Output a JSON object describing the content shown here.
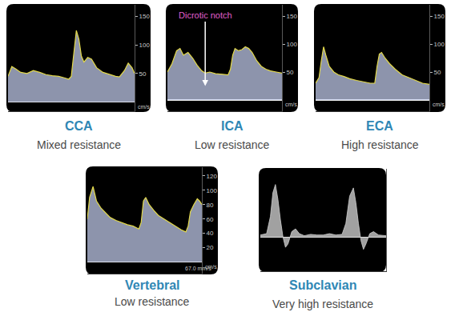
{
  "chart_data": [
    {
      "type": "area",
      "title": "CCA",
      "subtitle": "Mixed resistance",
      "color": "#e3d94a",
      "x": [
        0,
        3,
        6,
        10,
        15,
        20,
        25,
        30,
        35,
        40,
        45,
        48,
        50,
        52,
        54,
        56,
        58,
        60,
        63,
        66,
        70,
        75,
        80,
        85,
        88,
        92,
        95,
        98,
        100
      ],
      "values": [
        45,
        62,
        58,
        52,
        50,
        55,
        52,
        48,
        46,
        45,
        42,
        40,
        45,
        90,
        125,
        110,
        80,
        70,
        78,
        75,
        60,
        52,
        48,
        45,
        44,
        55,
        68,
        60,
        50
      ],
      "xlim": [
        0,
        100
      ],
      "ylim": [
        -16,
        170
      ],
      "yticks": [
        50,
        100,
        150
      ],
      "y_label": "cm/s",
      "tick_labels": "y",
      "grid": false
    },
    {
      "type": "area",
      "title": "ICA",
      "subtitle": "Low resistance",
      "color": "#e3d94a",
      "x": [
        0,
        4,
        8,
        11,
        14,
        18,
        22,
        26,
        30,
        33,
        37,
        42,
        48,
        53,
        55,
        57,
        59,
        62,
        65,
        68,
        71,
        74,
        78,
        82,
        86,
        90,
        95,
        100
      ],
      "values": [
        50,
        65,
        88,
        92,
        80,
        85,
        75,
        62,
        52,
        48,
        50,
        47,
        46,
        45,
        55,
        80,
        92,
        88,
        90,
        95,
        92,
        85,
        70,
        60,
        55,
        52,
        50,
        48
      ],
      "xlim": [
        0,
        100
      ],
      "ylim": [
        -20,
        170
      ],
      "yticks": [
        50,
        100,
        150
      ],
      "y_label": "cm/s",
      "annotations": [
        {
          "text": "Dicrotic notch",
          "x": 33,
          "y": 25
        }
      ],
      "tick_labels": "y",
      "grid": false
    },
    {
      "type": "area",
      "title": "ECA",
      "subtitle": "High resistance",
      "color": "#e3d94a",
      "x": [
        0,
        3,
        5,
        7,
        9,
        12,
        16,
        20,
        25,
        30,
        36,
        42,
        48,
        52,
        54,
        56,
        58,
        61,
        65,
        70,
        76,
        82,
        88,
        94,
        100
      ],
      "values": [
        30,
        40,
        70,
        95,
        80,
        60,
        50,
        45,
        42,
        38,
        35,
        32,
        30,
        30,
        60,
        82,
        85,
        75,
        65,
        55,
        45,
        40,
        35,
        30,
        28
      ],
      "xlim": [
        0,
        100
      ],
      "ylim": [
        -20,
        170
      ],
      "yticks": [
        50,
        100,
        150
      ],
      "y_label": "cm/s",
      "tick_labels": "y",
      "grid": false
    },
    {
      "type": "area",
      "title": "Vertebral",
      "subtitle": "Low resistance",
      "color": "#e3d94a",
      "x": [
        0,
        2,
        5,
        8,
        12,
        16,
        20,
        25,
        30,
        35,
        40,
        45,
        47,
        49,
        51,
        54,
        58,
        62,
        67,
        72,
        77,
        82,
        86,
        88,
        90,
        93,
        96,
        98,
        100
      ],
      "values": [
        60,
        90,
        105,
        85,
        75,
        68,
        62,
        58,
        55,
        52,
        50,
        46,
        55,
        85,
        90,
        80,
        72,
        65,
        60,
        55,
        50,
        45,
        42,
        50,
        70,
        80,
        88,
        85,
        80
      ],
      "xlim": [
        0,
        100
      ],
      "ylim": [
        -16,
        132
      ],
      "yticks": [
        20,
        40,
        60,
        80,
        100,
        120
      ],
      "y_label": "cm/s",
      "annotations": [
        {
          "text": "67.0 mm/s"
        }
      ],
      "tick_labels": "y",
      "grid": false
    },
    {
      "type": "area",
      "title": "Subclavian",
      "subtitle": "Very high resistance",
      "color": "#d0d0d0",
      "x": [
        0,
        5,
        8,
        10,
        12,
        14,
        16,
        18,
        20,
        22,
        25,
        28,
        31,
        35,
        40,
        45,
        50,
        55,
        60,
        65,
        68,
        71,
        74,
        76,
        78,
        80,
        82,
        84,
        87,
        90,
        94,
        100
      ],
      "values": [
        3,
        5,
        30,
        65,
        77,
        55,
        25,
        0,
        -15,
        -10,
        8,
        12,
        5,
        2,
        4,
        3,
        3,
        5,
        3,
        4,
        20,
        60,
        72,
        50,
        20,
        -5,
        -18,
        -10,
        5,
        8,
        3,
        2
      ],
      "xlim": [
        0,
        100
      ],
      "ylim": [
        -50,
        100
      ],
      "tick_labels": false,
      "grid": false
    }
  ]
}
